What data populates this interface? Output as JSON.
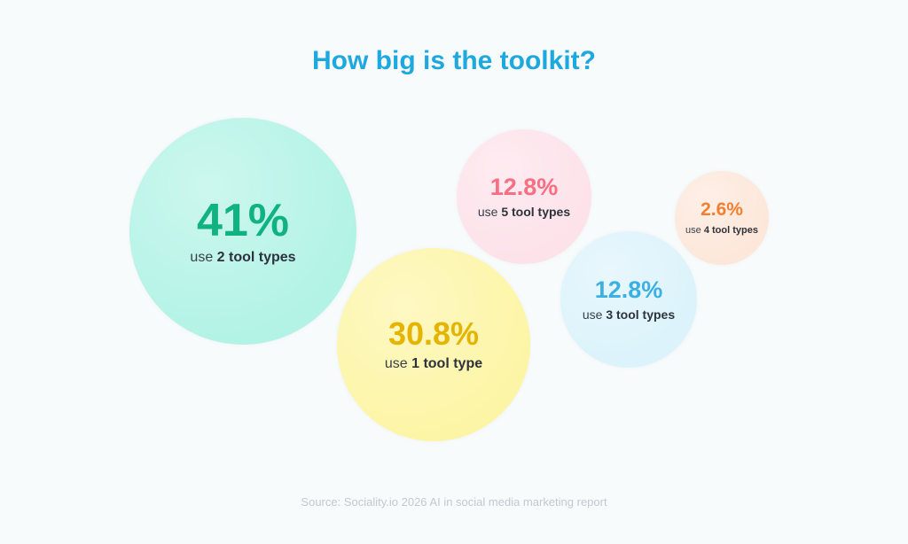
{
  "chart_data": {
    "type": "bubble",
    "title": "How big is the toolkit?",
    "source": "Source: Sociality.io 2026 AI in social media marketing report",
    "bubbles": [
      {
        "value": 41,
        "display": "41%",
        "prefix": "use",
        "bold": "2 tool types",
        "fill": "#b3f3e6",
        "text_color": "#10b282"
      },
      {
        "value": 30.8,
        "display": "30.8%",
        "prefix": "use",
        "bold": "1 tool type",
        "fill": "#fdf5a6",
        "text_color": "#e4b400"
      },
      {
        "value": 12.8,
        "display": "12.8%",
        "prefix": "use",
        "bold": "5 tool types",
        "fill": "#fde2ea",
        "text_color": "#f86e82"
      },
      {
        "value": 12.8,
        "display": "12.8%",
        "prefix": "use",
        "bold": "3 tool types",
        "fill": "#dcf3fb",
        "text_color": "#3cb0e2"
      },
      {
        "value": 2.6,
        "display": "2.6%",
        "prefix": "use",
        "bold": "4 tool types",
        "fill": "#fde7da",
        "text_color": "#f47f30"
      }
    ]
  }
}
